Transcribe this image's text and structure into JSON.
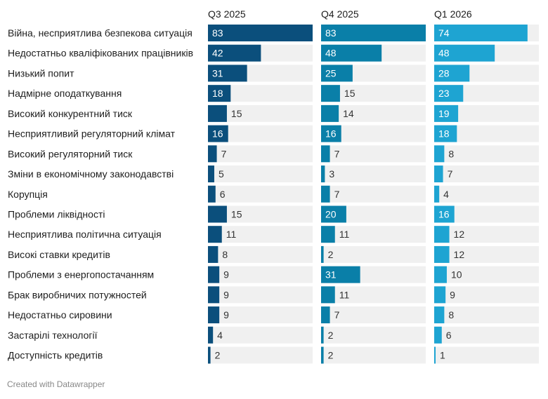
{
  "chart_data": {
    "type": "bar",
    "orientation": "horizontal",
    "layout": "small-multiples",
    "categories": [
      "Війна, несприятлива безпекова ситуація",
      "Недостатньо кваліфікованих працівників",
      "Низький попит",
      "Надмірне оподаткування",
      "Високий конкурентний тиск",
      "Несприятливий регуляторний клімат",
      "Високий регуляторний тиск",
      "Зміни в економічному законодавстві",
      "Корупція",
      "Проблеми ліквідності",
      "Несприятлива політична ситуація",
      "Високі ставки кредитів",
      "Проблеми з енергопостачанням",
      "Брак виробничих потужностей",
      "Недостатньо сировини",
      "Застарілі технології",
      "Доступність кредитів"
    ],
    "series": [
      {
        "name": "Q3 2025",
        "color": "#0b4f7c",
        "values": [
          83,
          42,
          31,
          18,
          15,
          16,
          7,
          5,
          6,
          15,
          11,
          8,
          9,
          9,
          9,
          4,
          2
        ]
      },
      {
        "name": "Q4 2025",
        "color": "#0a7fa8",
        "values": [
          83,
          48,
          25,
          15,
          14,
          16,
          7,
          3,
          7,
          20,
          11,
          2,
          31,
          11,
          7,
          2,
          2
        ]
      },
      {
        "name": "Q1 2026",
        "color": "#1ea4d2",
        "values": [
          74,
          48,
          28,
          23,
          19,
          18,
          8,
          7,
          4,
          16,
          12,
          12,
          10,
          9,
          8,
          6,
          1
        ]
      }
    ],
    "xlim": [
      0,
      83
    ],
    "grid": false,
    "label_inside_threshold": 16
  },
  "credit": "Created with Datawrapper",
  "colors": {
    "track": "#f0f0f0",
    "label_inside": "#ffffff",
    "label_outside": "#333333"
  }
}
